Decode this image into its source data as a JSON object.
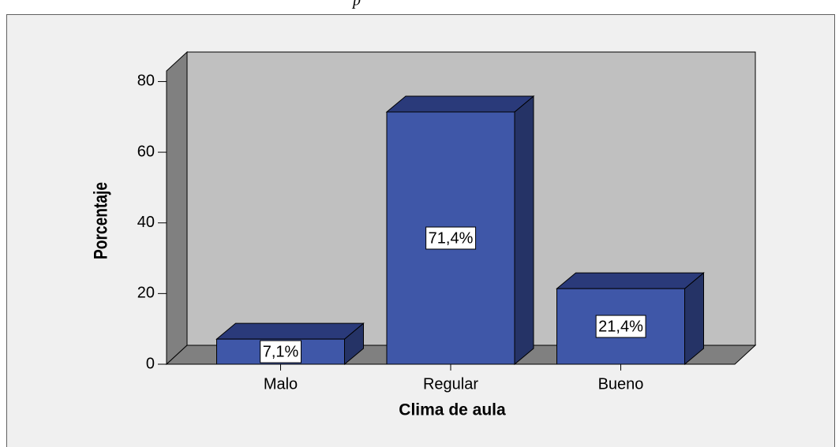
{
  "caption": "p",
  "chart_data": {
    "type": "bar3d",
    "xlabel": "Clima de aula",
    "ylabel": "Porcentaje",
    "categories": [
      "Malo",
      "Regular",
      "Bueno"
    ],
    "values": [
      7.1,
      71.4,
      21.4
    ],
    "value_labels": [
      "7,1%",
      "71,4%",
      "21,4%"
    ],
    "color": "#3f57a8",
    "ylim": [
      0,
      83
    ],
    "yticks": [
      0,
      20,
      40,
      60,
      80
    ],
    "grid": false
  }
}
